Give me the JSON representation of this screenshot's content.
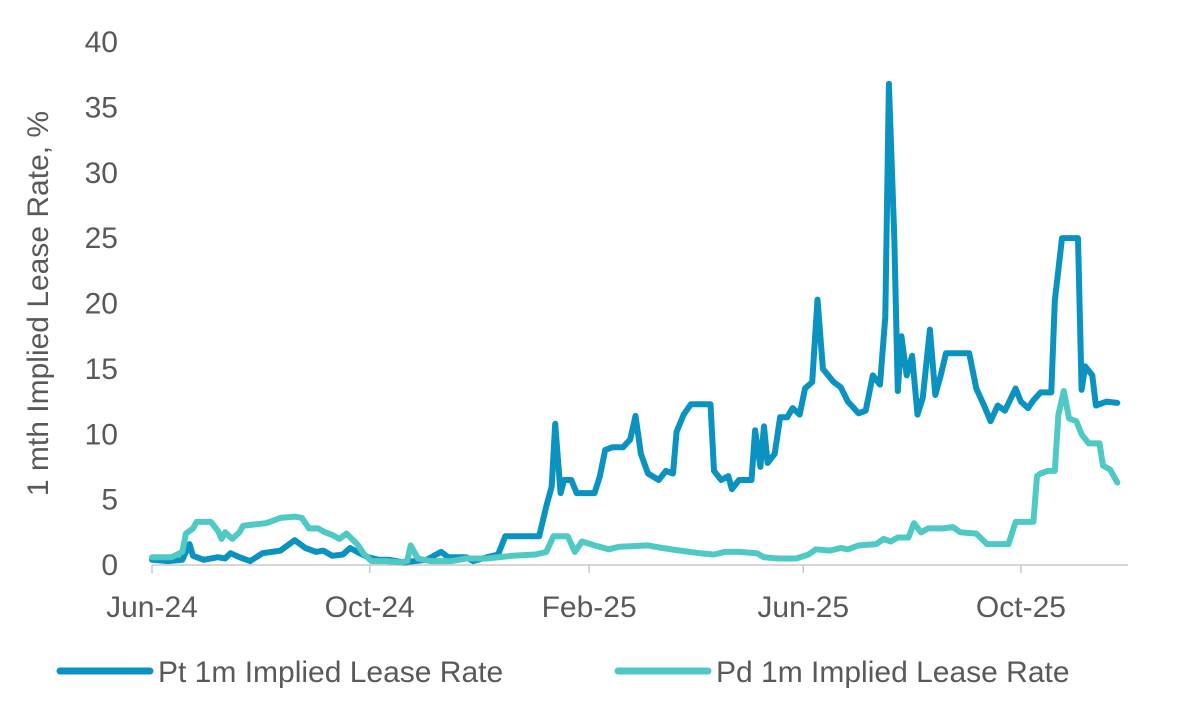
{
  "chart_data": {
    "type": "line",
    "title": "",
    "xlabel": "",
    "ylabel": "1 mth Implied Lease Rate, %",
    "ylim": [
      0,
      40
    ],
    "yticks": [
      "0",
      "5",
      "10",
      "15",
      "20",
      "25",
      "30",
      "35",
      "40"
    ],
    "xlim": [
      "2024-06-01",
      "2025-11-30"
    ],
    "xticks": [
      {
        "label": "Jun-24",
        "date": "2024-06-01"
      },
      {
        "label": "Oct-24",
        "date": "2024-10-01"
      },
      {
        "label": "Feb-25",
        "date": "2025-02-01"
      },
      {
        "label": "Jun-25",
        "date": "2025-06-01"
      },
      {
        "label": "Oct-25",
        "date": "2025-10-01"
      }
    ],
    "grid": false,
    "legend_position": "bottom",
    "series": [
      {
        "name": "Pt 1m Implied Lease Rate",
        "color": "#0A93C0",
        "points": [
          [
            "2024-06-01",
            0.4
          ],
          [
            "2024-06-10",
            0.3
          ],
          [
            "2024-06-18",
            0.4
          ],
          [
            "2024-06-22",
            1.6
          ],
          [
            "2024-06-24",
            0.7
          ],
          [
            "2024-06-30",
            0.4
          ],
          [
            "2024-07-08",
            0.6
          ],
          [
            "2024-07-12",
            0.5
          ],
          [
            "2024-07-15",
            0.9
          ],
          [
            "2024-07-20",
            0.6
          ],
          [
            "2024-07-26",
            0.3
          ],
          [
            "2024-08-02",
            0.9
          ],
          [
            "2024-08-12",
            1.1
          ],
          [
            "2024-08-20",
            1.9
          ],
          [
            "2024-08-26",
            1.3
          ],
          [
            "2024-09-01",
            1.0
          ],
          [
            "2024-09-05",
            1.1
          ],
          [
            "2024-09-10",
            0.7
          ],
          [
            "2024-09-16",
            0.8
          ],
          [
            "2024-09-20",
            1.3
          ],
          [
            "2024-09-24",
            1.0
          ],
          [
            "2024-09-30",
            0.6
          ],
          [
            "2024-10-06",
            0.4
          ],
          [
            "2024-10-12",
            0.4
          ],
          [
            "2024-10-20",
            0.2
          ],
          [
            "2024-10-26",
            0.3
          ],
          [
            "2024-11-02",
            0.4
          ],
          [
            "2024-11-10",
            1.0
          ],
          [
            "2024-11-14",
            0.6
          ],
          [
            "2024-11-24",
            0.6
          ],
          [
            "2024-11-28",
            0.3
          ],
          [
            "2024-12-06",
            0.6
          ],
          [
            "2024-12-12",
            0.8
          ],
          [
            "2024-12-16",
            2.2
          ],
          [
            "2025-01-04",
            2.2
          ],
          [
            "2025-01-08",
            4.5
          ],
          [
            "2025-01-11",
            6.0
          ],
          [
            "2025-01-13",
            10.8
          ],
          [
            "2025-01-16",
            5.5
          ],
          [
            "2025-01-18",
            6.5
          ],
          [
            "2025-01-22",
            6.5
          ],
          [
            "2025-01-25",
            5.5
          ],
          [
            "2025-02-04",
            5.5
          ],
          [
            "2025-02-07",
            6.8
          ],
          [
            "2025-02-10",
            8.8
          ],
          [
            "2025-02-14",
            9.0
          ],
          [
            "2025-02-20",
            9.0
          ],
          [
            "2025-02-24",
            9.6
          ],
          [
            "2025-02-27",
            11.4
          ],
          [
            "2025-03-02",
            8.5
          ],
          [
            "2025-03-06",
            7.0
          ],
          [
            "2025-03-12",
            6.5
          ],
          [
            "2025-03-16",
            7.2
          ],
          [
            "2025-03-20",
            7.0
          ],
          [
            "2025-03-22",
            10.2
          ],
          [
            "2025-03-26",
            11.5
          ],
          [
            "2025-03-30",
            12.3
          ],
          [
            "2025-04-10",
            12.3
          ],
          [
            "2025-04-12",
            7.2
          ],
          [
            "2025-04-16",
            6.5
          ],
          [
            "2025-04-20",
            6.8
          ],
          [
            "2025-04-22",
            5.8
          ],
          [
            "2025-04-26",
            6.5
          ],
          [
            "2025-05-03",
            6.5
          ],
          [
            "2025-05-05",
            10.3
          ],
          [
            "2025-05-08",
            7.5
          ],
          [
            "2025-05-10",
            10.6
          ],
          [
            "2025-05-12",
            7.8
          ],
          [
            "2025-05-16",
            8.5
          ],
          [
            "2025-05-19",
            11.3
          ],
          [
            "2025-05-23",
            11.3
          ],
          [
            "2025-05-26",
            12.0
          ],
          [
            "2025-05-30",
            11.5
          ],
          [
            "2025-06-02",
            13.5
          ],
          [
            "2025-06-06",
            14.0
          ],
          [
            "2025-06-09",
            20.3
          ],
          [
            "2025-06-12",
            15.0
          ],
          [
            "2025-06-18",
            14.0
          ],
          [
            "2025-06-22",
            13.6
          ],
          [
            "2025-06-26",
            12.5
          ],
          [
            "2025-07-02",
            11.6
          ],
          [
            "2025-07-06",
            11.8
          ],
          [
            "2025-07-10",
            14.5
          ],
          [
            "2025-07-14",
            13.8
          ],
          [
            "2025-07-17",
            19.0
          ],
          [
            "2025-07-19",
            36.8
          ],
          [
            "2025-07-22",
            25.0
          ],
          [
            "2025-07-24",
            13.3
          ],
          [
            "2025-07-26",
            17.5
          ],
          [
            "2025-07-29",
            14.5
          ],
          [
            "2025-08-01",
            16.0
          ],
          [
            "2025-08-04",
            11.5
          ],
          [
            "2025-08-07",
            12.8
          ],
          [
            "2025-08-11",
            18.0
          ],
          [
            "2025-08-14",
            13.0
          ],
          [
            "2025-08-17",
            14.5
          ],
          [
            "2025-08-20",
            16.2
          ],
          [
            "2025-09-02",
            16.2
          ],
          [
            "2025-09-06",
            13.5
          ],
          [
            "2025-09-10",
            12.3
          ],
          [
            "2025-09-14",
            11.0
          ],
          [
            "2025-09-18",
            12.2
          ],
          [
            "2025-09-22",
            11.8
          ],
          [
            "2025-09-28",
            13.5
          ],
          [
            "2025-10-01",
            12.5
          ],
          [
            "2025-10-05",
            12.0
          ],
          [
            "2025-10-08",
            12.6
          ],
          [
            "2025-10-12",
            13.2
          ],
          [
            "2025-10-18",
            13.2
          ],
          [
            "2025-10-20",
            20.2
          ],
          [
            "2025-10-24",
            25.0
          ],
          [
            "2025-11-02",
            25.0
          ],
          [
            "2025-11-04",
            13.4
          ],
          [
            "2025-11-06",
            15.2
          ],
          [
            "2025-11-10",
            14.5
          ],
          [
            "2025-11-12",
            12.2
          ],
          [
            "2025-11-18",
            12.5
          ],
          [
            "2025-11-24",
            12.4
          ]
        ]
      },
      {
        "name": "Pd 1m Implied Lease Rate",
        "color": "#4EC9C3",
        "points": [
          [
            "2024-06-01",
            0.6
          ],
          [
            "2024-06-12",
            0.6
          ],
          [
            "2024-06-18",
            1.0
          ],
          [
            "2024-06-20",
            2.4
          ],
          [
            "2024-06-24",
            2.8
          ],
          [
            "2024-06-26",
            3.3
          ],
          [
            "2024-07-04",
            3.3
          ],
          [
            "2024-07-08",
            2.6
          ],
          [
            "2024-07-10",
            2.0
          ],
          [
            "2024-07-12",
            2.5
          ],
          [
            "2024-07-16",
            2.0
          ],
          [
            "2024-07-20",
            2.5
          ],
          [
            "2024-07-22",
            3.0
          ],
          [
            "2024-07-28",
            3.1
          ],
          [
            "2024-08-04",
            3.2
          ],
          [
            "2024-08-12",
            3.6
          ],
          [
            "2024-08-20",
            3.7
          ],
          [
            "2024-08-24",
            3.6
          ],
          [
            "2024-08-28",
            2.8
          ],
          [
            "2024-09-02",
            2.8
          ],
          [
            "2024-09-06",
            2.5
          ],
          [
            "2024-09-10",
            2.3
          ],
          [
            "2024-09-14",
            2.0
          ],
          [
            "2024-09-18",
            2.4
          ],
          [
            "2024-09-24",
            1.6
          ],
          [
            "2024-09-28",
            0.8
          ],
          [
            "2024-10-02",
            0.3
          ],
          [
            "2024-10-10",
            0.3
          ],
          [
            "2024-10-18",
            0.2
          ],
          [
            "2024-10-22",
            0.3
          ],
          [
            "2024-10-24",
            1.5
          ],
          [
            "2024-10-28",
            0.5
          ],
          [
            "2024-11-04",
            0.3
          ],
          [
            "2024-11-16",
            0.3
          ],
          [
            "2024-11-24",
            0.5
          ],
          [
            "2024-12-06",
            0.5
          ],
          [
            "2024-12-20",
            0.7
          ],
          [
            "2025-01-02",
            0.8
          ],
          [
            "2025-01-08",
            1.0
          ],
          [
            "2025-01-12",
            2.2
          ],
          [
            "2025-01-20",
            2.2
          ],
          [
            "2025-01-24",
            1.0
          ],
          [
            "2025-01-28",
            1.8
          ],
          [
            "2025-02-04",
            1.5
          ],
          [
            "2025-02-12",
            1.2
          ],
          [
            "2025-02-18",
            1.4
          ],
          [
            "2025-03-06",
            1.5
          ],
          [
            "2025-03-14",
            1.3
          ],
          [
            "2025-03-24",
            1.1
          ],
          [
            "2025-04-04",
            0.9
          ],
          [
            "2025-04-12",
            0.8
          ],
          [
            "2025-04-18",
            1.0
          ],
          [
            "2025-04-26",
            1.0
          ],
          [
            "2025-05-06",
            0.9
          ],
          [
            "2025-05-10",
            0.6
          ],
          [
            "2025-05-18",
            0.5
          ],
          [
            "2025-05-28",
            0.5
          ],
          [
            "2025-06-04",
            0.8
          ],
          [
            "2025-06-08",
            1.2
          ],
          [
            "2025-06-16",
            1.1
          ],
          [
            "2025-06-22",
            1.3
          ],
          [
            "2025-06-26",
            1.2
          ],
          [
            "2025-07-02",
            1.5
          ],
          [
            "2025-07-12",
            1.6
          ],
          [
            "2025-07-16",
            2.0
          ],
          [
            "2025-07-20",
            1.8
          ],
          [
            "2025-07-24",
            2.1
          ],
          [
            "2025-07-30",
            2.1
          ],
          [
            "2025-08-02",
            3.2
          ],
          [
            "2025-08-06",
            2.5
          ],
          [
            "2025-08-10",
            2.8
          ],
          [
            "2025-08-18",
            2.8
          ],
          [
            "2025-08-24",
            2.9
          ],
          [
            "2025-08-28",
            2.5
          ],
          [
            "2025-09-06",
            2.4
          ],
          [
            "2025-09-12",
            1.6
          ],
          [
            "2025-09-18",
            1.6
          ],
          [
            "2025-09-24",
            1.6
          ],
          [
            "2025-09-28",
            3.3
          ],
          [
            "2025-10-08",
            3.3
          ],
          [
            "2025-10-10",
            6.8
          ],
          [
            "2025-10-12",
            7.0
          ],
          [
            "2025-10-16",
            7.2
          ],
          [
            "2025-10-20",
            7.2
          ],
          [
            "2025-10-22",
            11.5
          ],
          [
            "2025-10-25",
            13.3
          ],
          [
            "2025-10-28",
            11.2
          ],
          [
            "2025-11-01",
            11.0
          ],
          [
            "2025-11-04",
            10.0
          ],
          [
            "2025-11-08",
            9.3
          ],
          [
            "2025-11-14",
            9.3
          ],
          [
            "2025-11-16",
            7.6
          ],
          [
            "2025-11-20",
            7.3
          ],
          [
            "2025-11-24",
            6.3
          ]
        ]
      }
    ]
  }
}
